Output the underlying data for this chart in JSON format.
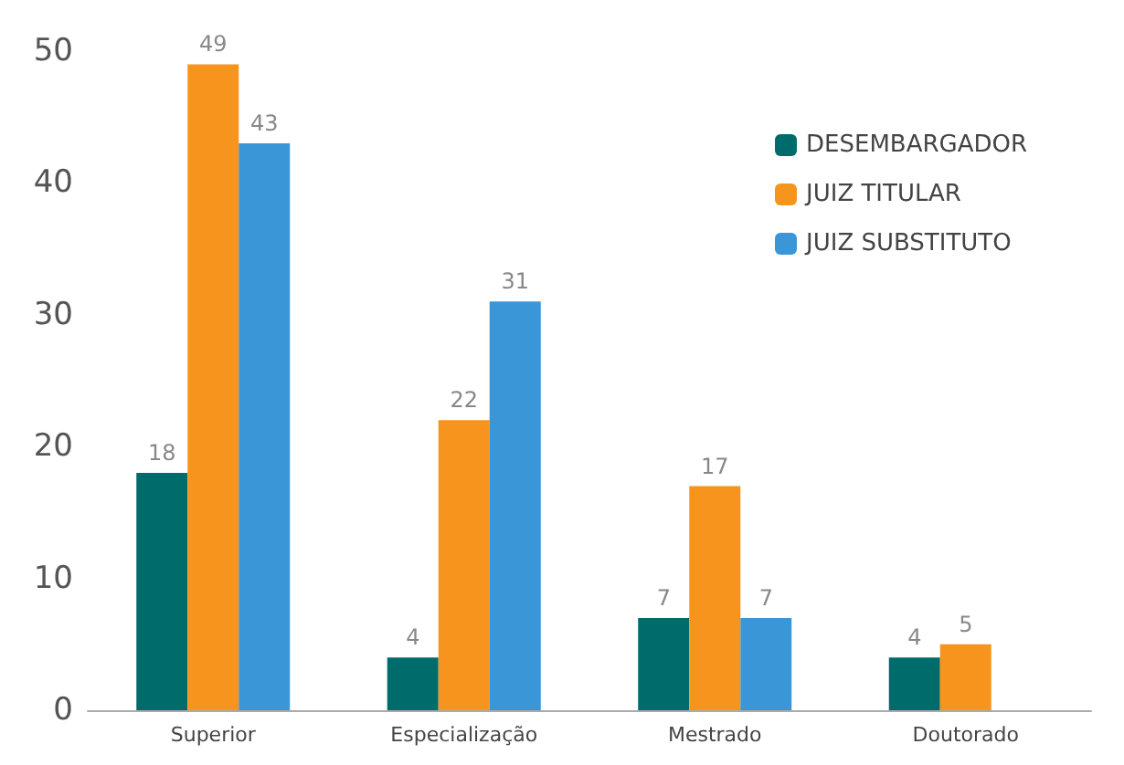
{
  "chart_data": {
    "type": "bar",
    "categories": [
      "Superior",
      "Especialização",
      "Mestrado",
      "Doutorado"
    ],
    "series": [
      {
        "name": "DESEMBARGADOR",
        "color": "#006b6b",
        "values": [
          18,
          4,
          7,
          4
        ]
      },
      {
        "name": "JUIZ TITULAR",
        "color": "#f7941d",
        "values": [
          49,
          22,
          17,
          5
        ]
      },
      {
        "name": "JUIZ SUBSTITUTO",
        "color": "#3a96d6",
        "values": [
          43,
          31,
          7,
          null
        ]
      }
    ],
    "ylim": [
      0,
      50
    ],
    "yticks": [
      0,
      10,
      20,
      30,
      40,
      50
    ],
    "grid": false,
    "legend": "top right",
    "data_labels": true
  }
}
